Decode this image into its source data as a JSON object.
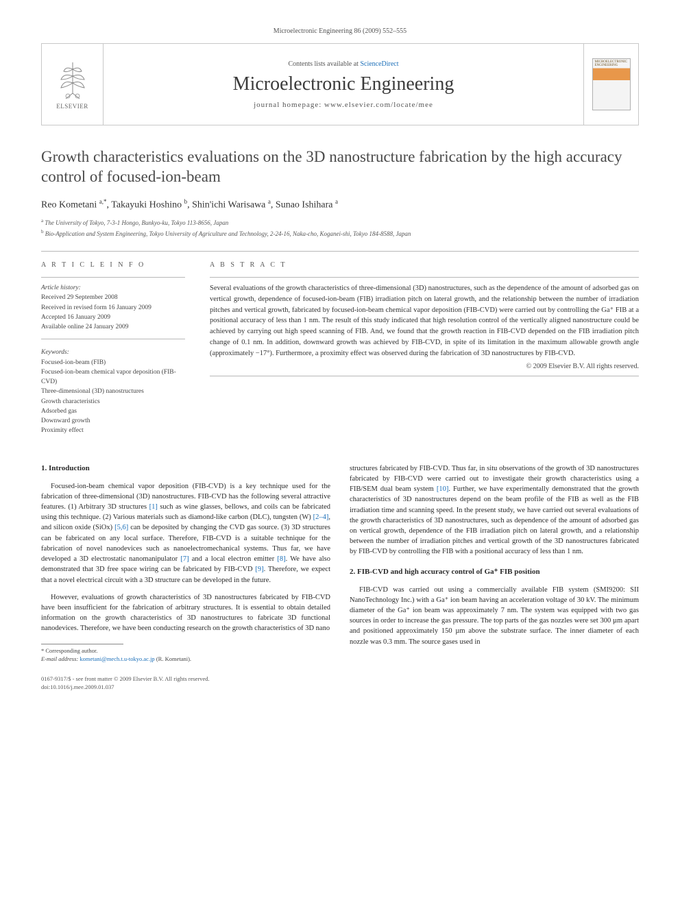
{
  "header": {
    "citation": "Microelectronic Engineering 86 (2009) 552–555"
  },
  "banner": {
    "contents_prefix": "Contents lists available at ",
    "contents_link": "ScienceDirect",
    "journal_name": "Microelectronic Engineering",
    "homepage_prefix": "journal homepage: ",
    "homepage_url": "www.elsevier.com/locate/mee",
    "publisher_name": "ELSEVIER",
    "cover_label": "MICROELECTRONIC ENGINEERING"
  },
  "title": "Growth characteristics evaluations on the 3D nanostructure fabrication by the high accuracy control of focused-ion-beam",
  "authors_html": "Reo Kometani <sup>a,*</sup>, Takayuki Hoshino <sup>b</sup>, Shin'ichi Warisawa <sup>a</sup>, Sunao Ishihara <sup>a</sup>",
  "affiliations": [
    {
      "tag": "a",
      "text": "The University of Tokyo, 7-3-1 Hongo, Bunkyo-ku, Tokyo 113-8656, Japan"
    },
    {
      "tag": "b",
      "text": "Bio-Application and System Engineering, Tokyo University of Agriculture and Technology, 2-24-16, Naka-cho, Koganei-shi, Tokyo 184-8588, Japan"
    }
  ],
  "article_info": {
    "label": "A R T I C L E   I N F O",
    "history_head": "Article history:",
    "history": [
      "Received 29 September 2008",
      "Received in revised form 16 January 2009",
      "Accepted 16 January 2009",
      "Available online 24 January 2009"
    ],
    "keywords_head": "Keywords:",
    "keywords": [
      "Focused-ion-beam (FIB)",
      "Focused-ion-beam chemical vapor deposition (FIB-CVD)",
      "Three-dimensional (3D) nanostructures",
      "Growth characteristics",
      "Adsorbed gas",
      "Downward growth",
      "Proximity effect"
    ]
  },
  "abstract": {
    "label": "A B S T R A C T",
    "text": "Several evaluations of the growth characteristics of three-dimensional (3D) nanostructures, such as the dependence of the amount of adsorbed gas on vertical growth, dependence of focused-ion-beam (FIB) irradiation pitch on lateral growth, and the relationship between the number of irradiation pitches and vertical growth, fabricated by focused-ion-beam chemical vapor deposition (FIB-CVD) were carried out by controlling the Ga⁺ FIB at a positional accuracy of less than 1 nm. The result of this study indicated that high resolution control of the vertically aligned nanostructure could be achieved by carrying out high speed scanning of FIB. And, we found that the growth reaction in FIB-CVD depended on the FIB irradiation pitch change of 0.1 nm. In addition, downward growth was achieved by FIB-CVD, in spite of its limitation in the maximum allowable growth angle (approximately −17°). Furthermore, a proximity effect was observed during the fabrication of 3D nanostructures by FIB-CVD.",
    "copyright": "© 2009 Elsevier B.V. All rights reserved."
  },
  "body": {
    "intro_head": "1. Introduction",
    "intro_p1": "Focused-ion-beam chemical vapor deposition (FIB-CVD) is a key technique used for the fabrication of three-dimensional (3D) nanostructures. FIB-CVD has the following several attractive features. (1) Arbitrary 3D structures [1] such as wine glasses, bellows, and coils can be fabricated using this technique. (2) Various materials such as diamond-like carbon (DLC), tungsten (W) [2–4], and silicon oxide (SiOx) [5,6] can be deposited by changing the CVD gas source. (3) 3D structures can be fabricated on any local surface. Therefore, FIB-CVD is a suitable technique for the fabrication of novel nanodevices such as nanoelectromechanical systems. Thus far, we have developed a 3D electrostatic nanomanipulator [7] and a local electron emitter [8]. We have also demonstrated that 3D free space wiring can be fabricated by FIB-CVD [9]. Therefore, we expect that a novel electrical circuit with a 3D structure can be developed in the future.",
    "intro_p2": "However, evaluations of growth characteristics of 3D nanostructures fabricated by FIB-CVD have been insufficient for the fabrication of arbitrary structures. It is essential to obtain detailed information on the growth characteristics of 3D nanostructures to fabricate 3D functional nanodevices. Therefore, we have been conducting research on the growth characteristics of 3D nano",
    "col2_continue": "structures fabricated by FIB-CVD. Thus far, in situ observations of the growth of 3D nanostructures fabricated by FIB-CVD were carried out to investigate their growth characteristics using a FIB/SEM dual beam system [10]. Further, we have experimentally demonstrated that the growth characteristics of 3D nanostructures depend on the beam profile of the FIB as well as the FIB irradiation time and scanning speed. In the present study, we have carried out several evaluations of the growth characteristics of 3D nanostructures, such as dependence of the amount of adsorbed gas on vertical growth, dependence of the FIB irradiation pitch on lateral growth, and a relationship between the number of irradiation pitches and vertical growth of the 3D nanostructures fabricated by FIB-CVD by controlling the FIB with a positional accuracy of less than 1 nm.",
    "sec2_head": "2. FIB-CVD and high accuracy control of Ga⁺ FIB position",
    "sec2_p1": "FIB-CVD was carried out using a commercially available FIB system (SMI9200: SII NanoTechnology Inc.) with a Ga⁺ ion beam having an acceleration voltage of 30 kV. The minimum diameter of the Ga⁺ ion beam was approximately 7 nm. The system was equipped with two gas sources in order to increase the gas pressure. The top parts of the gas nozzles were set 300 µm apart and positioned approximately 150 µm above the substrate surface. The inner diameter of each nozzle was 0.3 mm. The source gases used in"
  },
  "footnote": {
    "corr": "* Corresponding author.",
    "email_label": "E-mail address:",
    "email": "kometani@mech.t.u-tokyo.ac.jp",
    "email_who": "(R. Kometani)."
  },
  "footer": {
    "line1": "0167-9317/$ - see front matter © 2009 Elsevier B.V. All rights reserved.",
    "line2": "doi:10.1016/j.mee.2009.01.037"
  },
  "refs": {
    "r1": "[1]",
    "r24": "[2–4]",
    "r56": "[5,6]",
    "r7": "[7]",
    "r8": "[8]",
    "r9": "[9]",
    "r10": "[10]"
  },
  "colors": {
    "link": "#1a6eb8",
    "text": "#2a2a2a",
    "border": "#c8c8c8"
  }
}
